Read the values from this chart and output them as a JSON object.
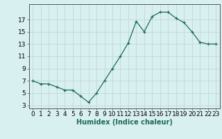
{
  "x": [
    0,
    1,
    2,
    3,
    4,
    5,
    6,
    7,
    8,
    9,
    10,
    11,
    12,
    13,
    14,
    15,
    16,
    17,
    18,
    19,
    20,
    21,
    22,
    23
  ],
  "y": [
    7,
    6.5,
    6.5,
    6,
    5.5,
    5.5,
    4.5,
    3.5,
    5,
    7,
    9,
    11,
    13.2,
    16.7,
    15,
    17.5,
    18.2,
    18.2,
    17.2,
    16.5,
    15,
    13.3,
    13,
    13
  ],
  "line_color": "#1a6b5a",
  "marker": "+",
  "bg_color": "#d9f0f0",
  "grid_color": "#c0d8d8",
  "xlabel": "Humidex (Indice chaleur)",
  "xlabel_fontsize": 7,
  "tick_fontsize": 6.5,
  "ylim": [
    2.5,
    19.5
  ],
  "yticks": [
    3,
    5,
    7,
    9,
    11,
    13,
    15,
    17
  ],
  "xlim": [
    -0.5,
    23.5
  ],
  "xticks": [
    0,
    1,
    2,
    3,
    4,
    5,
    6,
    7,
    8,
    9,
    10,
    11,
    12,
    13,
    14,
    15,
    16,
    17,
    18,
    19,
    20,
    21,
    22,
    23
  ]
}
